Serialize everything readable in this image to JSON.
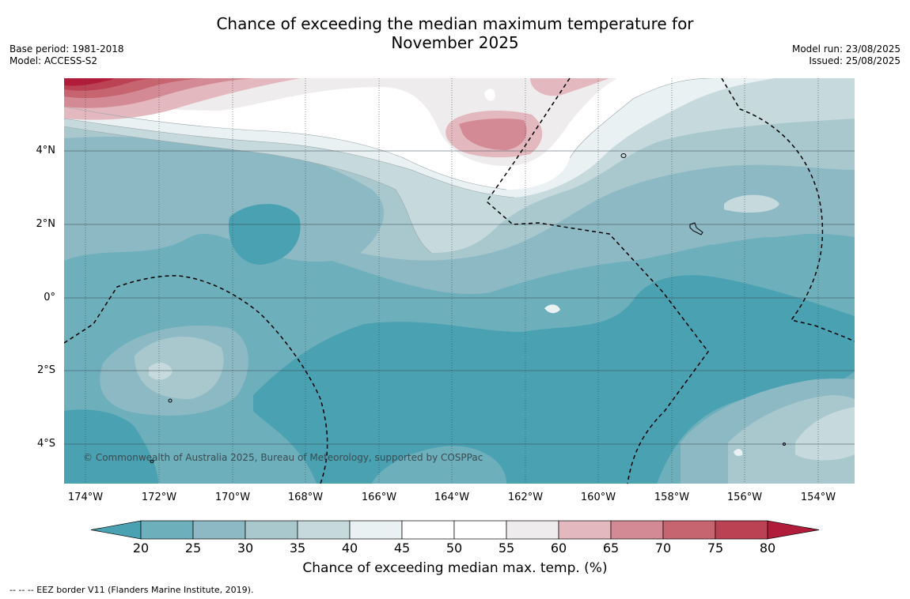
{
  "title_line1": "Chance of exceeding the median maximum temperature for",
  "title_line2": "November 2025",
  "meta_left": {
    "base_period": "Base period: 1981-2018",
    "model": "Model: ACCESS-S2"
  },
  "meta_right": {
    "model_run": "Model run: 23/08/2025",
    "issued": "Issued: 25/08/2025"
  },
  "copyright": "© Commonwealth of Australia 2025, Bureau of Meteorology, supported by COSPPac",
  "lat_labels": [
    "4°N",
    "2°N",
    "0°",
    "2°S",
    "4°S"
  ],
  "lon_labels": [
    "174°W",
    "172°W",
    "170°W",
    "168°W",
    "166°W",
    "164°W",
    "162°W",
    "160°W",
    "158°W",
    "156°W",
    "154°W"
  ],
  "colorbar": {
    "title": "Chance of exceeding median max. temp. (%)",
    "ticks": [
      "20",
      "25",
      "30",
      "35",
      "40",
      "45",
      "50",
      "55",
      "60",
      "65",
      "70",
      "75",
      "80"
    ],
    "colors": [
      "#4aa1b2",
      "#6dafbb",
      "#8db9c4",
      "#a9c8ce",
      "#c6d9dd",
      "#e9f1f3",
      "#ffffff",
      "#ffffff",
      "#eeeced",
      "#e3b8bf",
      "#d38a95",
      "#c6646f",
      "#bb4252",
      "#b01c3a"
    ]
  },
  "footnote": "--  --  -- EEZ border V11 (Flanders Marine Institute, 2019)."
}
